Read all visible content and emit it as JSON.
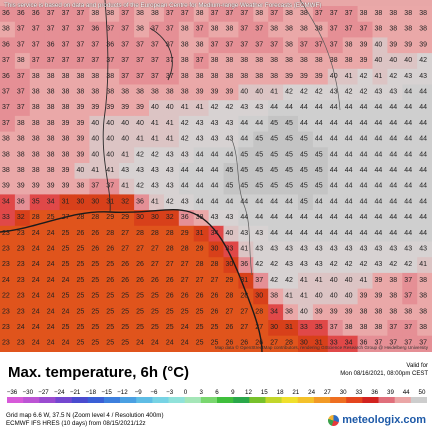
{
  "map": {
    "banner": "This service is based on data and products of the European Centre for Medium-range Weather Forecasts (ECMWF)",
    "attribution": "Map data © OpenStreetMap contributors, rendering GIScience Research Group @ Heidelberg University",
    "temperature_rows": [
      [
        36,
        36,
        36,
        37,
        37,
        37,
        38,
        38,
        37,
        38,
        38,
        37,
        37,
        38,
        37,
        37,
        37,
        38,
        37,
        38,
        38,
        37,
        37,
        37,
        38,
        38,
        38,
        38,
        38
      ],
      [
        38,
        37,
        37,
        37,
        37,
        37,
        36,
        37,
        37,
        38,
        37,
        37,
        38,
        37,
        38,
        38,
        37,
        37,
        38,
        38,
        38,
        38,
        37,
        37,
        37,
        38,
        38,
        38,
        38
      ],
      [
        36,
        37,
        37,
        36,
        37,
        37,
        37,
        36,
        37,
        37,
        37,
        37,
        38,
        38,
        37,
        37,
        37,
        37,
        37,
        38,
        37,
        37,
        37,
        38,
        39,
        40,
        39,
        39,
        39
      ],
      [
        37,
        38,
        37,
        37,
        37,
        37,
        37,
        37,
        37,
        37,
        37,
        37,
        38,
        37,
        38,
        38,
        38,
        38,
        38,
        38,
        38,
        38,
        38,
        38,
        39,
        40,
        40,
        40,
        42
      ],
      [
        36,
        37,
        38,
        38,
        38,
        38,
        38,
        38,
        37,
        37,
        37,
        37,
        38,
        38,
        38,
        38,
        38,
        38,
        38,
        39,
        39,
        39,
        40,
        41,
        42,
        41,
        42,
        43,
        43
      ],
      [
        37,
        37,
        38,
        38,
        38,
        38,
        38,
        38,
        38,
        38,
        38,
        38,
        38,
        39,
        39,
        39,
        40,
        40,
        41,
        42,
        42,
        42,
        43,
        42,
        42,
        43,
        43,
        44,
        44
      ],
      [
        37,
        37,
        38,
        38,
        38,
        39,
        39,
        39,
        39,
        39,
        40,
        40,
        41,
        41,
        42,
        42,
        43,
        43,
        44,
        44,
        44,
        44,
        44,
        44,
        44,
        44,
        44,
        44,
        44
      ],
      [
        37,
        38,
        38,
        38,
        39,
        39,
        40,
        40,
        40,
        40,
        41,
        41,
        42,
        43,
        43,
        43,
        44,
        44,
        45,
        45,
        44,
        44,
        44,
        44,
        44,
        44,
        44,
        44,
        44
      ],
      [
        38,
        38,
        38,
        38,
        38,
        39,
        40,
        40,
        40,
        41,
        41,
        41,
        42,
        43,
        43,
        43,
        44,
        45,
        45,
        45,
        45,
        44,
        44,
        44,
        44,
        44,
        44,
        44,
        44
      ],
      [
        38,
        38,
        38,
        38,
        38,
        39,
        40,
        40,
        41,
        42,
        42,
        43,
        43,
        44,
        44,
        44,
        45,
        45,
        45,
        45,
        45,
        45,
        44,
        44,
        44,
        44,
        44,
        44,
        44
      ],
      [
        38,
        38,
        38,
        38,
        39,
        40,
        41,
        41,
        43,
        43,
        43,
        43,
        44,
        44,
        44,
        45,
        45,
        45,
        45,
        45,
        45,
        45,
        44,
        44,
        44,
        44,
        44,
        44,
        44
      ],
      [
        39,
        39,
        39,
        39,
        39,
        38,
        37,
        37,
        41,
        42,
        43,
        43,
        44,
        44,
        44,
        45,
        45,
        45,
        45,
        45,
        45,
        45,
        44,
        44,
        44,
        44,
        44,
        44,
        44
      ],
      [
        34,
        36,
        35,
        34,
        31,
        30,
        30,
        31,
        32,
        36,
        41,
        42,
        43,
        44,
        44,
        44,
        44,
        44,
        44,
        44,
        45,
        44,
        44,
        44,
        44,
        44,
        44,
        44,
        44
      ],
      [
        33,
        32,
        28,
        25,
        27,
        28,
        28,
        29,
        29,
        30,
        30,
        32,
        36,
        38,
        43,
        43,
        44,
        44,
        44,
        44,
        44,
        44,
        44,
        44,
        44,
        44,
        44,
        44,
        44
      ],
      [
        23,
        23,
        24,
        24,
        25,
        26,
        26,
        28,
        27,
        28,
        28,
        28,
        29,
        31,
        34,
        40,
        43,
        43,
        44,
        44,
        44,
        44,
        44,
        44,
        44,
        44,
        44,
        44,
        44
      ],
      [
        23,
        23,
        24,
        24,
        25,
        25,
        26,
        26,
        27,
        27,
        27,
        28,
        28,
        29,
        30,
        33,
        41,
        43,
        43,
        43,
        43,
        43,
        43,
        43,
        43,
        43,
        43,
        43,
        43
      ],
      [
        23,
        23,
        24,
        24,
        25,
        25,
        25,
        25,
        26,
        26,
        27,
        27,
        27,
        28,
        28,
        30,
        36,
        42,
        42,
        43,
        43,
        43,
        42,
        42,
        42,
        43,
        42,
        42,
        41
      ],
      [
        24,
        23,
        24,
        24,
        24,
        25,
        25,
        26,
        26,
        26,
        26,
        26,
        27,
        27,
        27,
        29,
        31,
        37,
        42,
        42,
        41,
        41,
        40,
        40,
        41,
        39,
        38,
        37,
        38
      ],
      [
        22,
        23,
        24,
        24,
        25,
        25,
        25,
        25,
        25,
        25,
        25,
        26,
        26,
        26,
        26,
        28,
        28,
        30,
        38,
        41,
        41,
        40,
        40,
        40,
        39,
        39,
        38,
        37,
        38
      ],
      [
        23,
        23,
        24,
        24,
        24,
        25,
        25,
        25,
        25,
        25,
        25,
        25,
        25,
        25,
        26,
        27,
        27,
        28,
        34,
        38,
        40,
        39,
        39,
        39,
        38,
        38,
        38,
        38,
        38
      ],
      [
        23,
        24,
        24,
        24,
        25,
        25,
        25,
        25,
        25,
        25,
        25,
        25,
        24,
        25,
        25,
        26,
        27,
        27,
        30,
        31,
        33,
        35,
        37,
        38,
        38,
        38,
        37,
        37,
        38
      ],
      [
        23,
        23,
        24,
        24,
        24,
        25,
        25,
        25,
        25,
        24,
        24,
        24,
        24,
        25,
        25,
        26,
        26,
        26,
        27,
        28,
        30,
        31,
        33,
        34,
        36,
        37,
        37,
        37,
        37
      ]
    ],
    "scale_colors": [
      {
        "t": 25,
        "color": "#e0541c"
      },
      {
        "t": 30,
        "color": "#d8401a"
      },
      {
        "t": 33,
        "color": "#e04848"
      },
      {
        "t": 36,
        "color": "#e58f95"
      },
      {
        "t": 38,
        "color": "#eaa8a8"
      },
      {
        "t": 40,
        "color": "#dcc4c4"
      },
      {
        "t": 42,
        "color": "#d7d2d2"
      },
      {
        "t": 44,
        "color": "#cfcfcf"
      },
      {
        "t": 45,
        "color": "#c4c4c4"
      }
    ]
  },
  "legend": {
    "title": "Max. temperature, 6h (°C)",
    "ticks": [
      "−36",
      "−30",
      "−27",
      "−24",
      "−21",
      "−18",
      "−15",
      "−12",
      "−9",
      "−6",
      "−3",
      "0",
      "3",
      "6",
      "9",
      "12",
      "15",
      "18",
      "21",
      "24",
      "27",
      "30",
      "33",
      "36",
      "39",
      "44",
      "50"
    ],
    "colors": [
      "#d75ad9",
      "#bc54d4",
      "#9a4bd0",
      "#7447d0",
      "#4a4bcf",
      "#3a5fd6",
      "#3d7fdd",
      "#4aa0e2",
      "#5fbde5",
      "#77d3e4",
      "#90e2da",
      "#a5e6b8",
      "#79d76f",
      "#3fbf3c",
      "#2aa84a",
      "#77c12b",
      "#c2d62a",
      "#f0e02c",
      "#f4c12a",
      "#f29a26",
      "#ee6f21",
      "#e4451e",
      "#d2221f",
      "#e06f7b",
      "#eaa6a6",
      "#cdcdcd"
    ]
  },
  "valid": {
    "label": "Valid for",
    "datetime": "Mon 08/16/2021, 08:00pm CEST"
  },
  "info": {
    "grid": "Grid map 6.6 W, 37.5 N (Zoom level 4 / Resolution 400m)",
    "model": "ECMWF IFS HRES (10 days) from 08/15/2021/12z"
  },
  "brand": {
    "name": "meteologix.com"
  }
}
